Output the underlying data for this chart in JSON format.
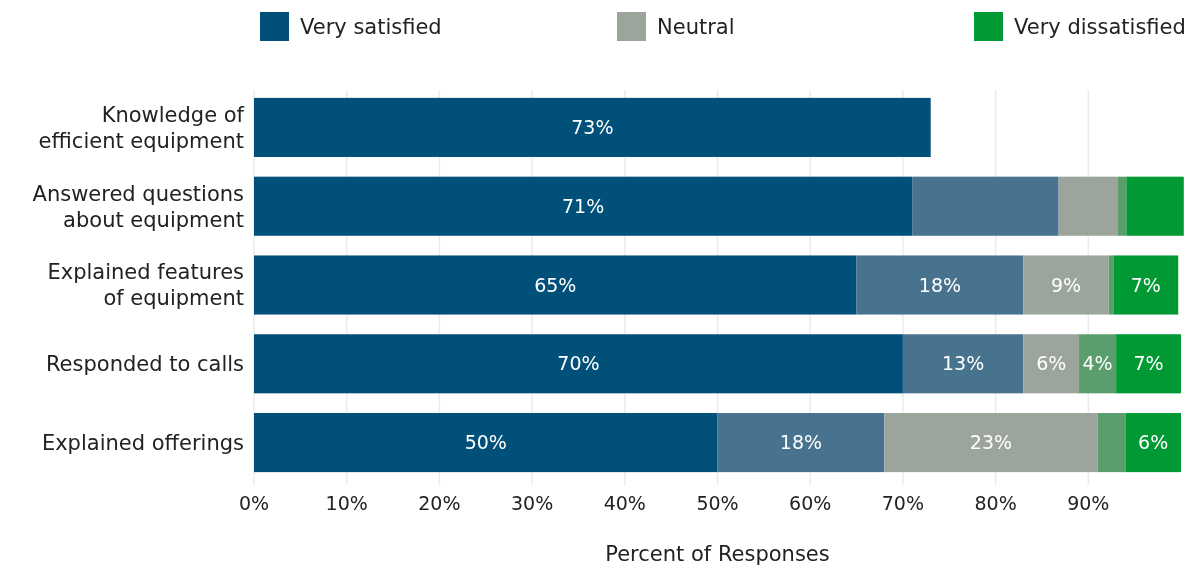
{
  "chart_data": {
    "type": "bar",
    "orientation": "horizontal",
    "stacked": true,
    "categories": [
      "Knowledge of efficient equipment",
      "Answered questions about equipment",
      "Explained features of equipment",
      "Responded to calls",
      "Explained offerings"
    ],
    "series": [
      {
        "name": "Very satisfied",
        "color": "#00507a",
        "values": [
          73,
          71,
          65,
          70,
          50
        ],
        "value_labels": [
          "73%",
          "71%",
          "65%",
          "70%",
          "50%"
        ]
      },
      {
        "color": "#47738e",
        "values": [
          null,
          15.8,
          18,
          13,
          18
        ],
        "value_labels": [
          null,
          null,
          "18%",
          "13%",
          "18%"
        ]
      },
      {
        "name": "Neutral",
        "color": "#9ca59b",
        "values": [
          null,
          6.4,
          9.2,
          6,
          23
        ],
        "value_labels": [
          null,
          null,
          "9%",
          "6%",
          "23%"
        ]
      },
      {
        "color": "#5a9e6e",
        "values": [
          null,
          0.9,
          0.5,
          4,
          3
        ],
        "value_labels": [
          null,
          null,
          null,
          "4%",
          null
        ]
      },
      {
        "name": "Very dissatisfied",
        "color": "#009933",
        "values": [
          null,
          6.2,
          7,
          7,
          6
        ],
        "value_labels": [
          null,
          null,
          "7%",
          "7%",
          "6%"
        ]
      }
    ],
    "xlim": [
      0,
      100
    ],
    "xticks": [
      {
        "value": 0,
        "label": "0%"
      },
      {
        "value": 10,
        "label": "10%"
      },
      {
        "value": 20,
        "label": "20%"
      },
      {
        "value": 30,
        "label": "30%"
      },
      {
        "value": 40,
        "label": "40%"
      },
      {
        "value": 50,
        "label": "50%"
      },
      {
        "value": 60,
        "label": "60%"
      },
      {
        "value": 70,
        "label": "70%"
      },
      {
        "value": 80,
        "label": "80%"
      },
      {
        "value": 90,
        "label": "90%"
      }
    ],
    "xlabel": "Percent of Responses",
    "grid": "x",
    "legend": "top"
  }
}
